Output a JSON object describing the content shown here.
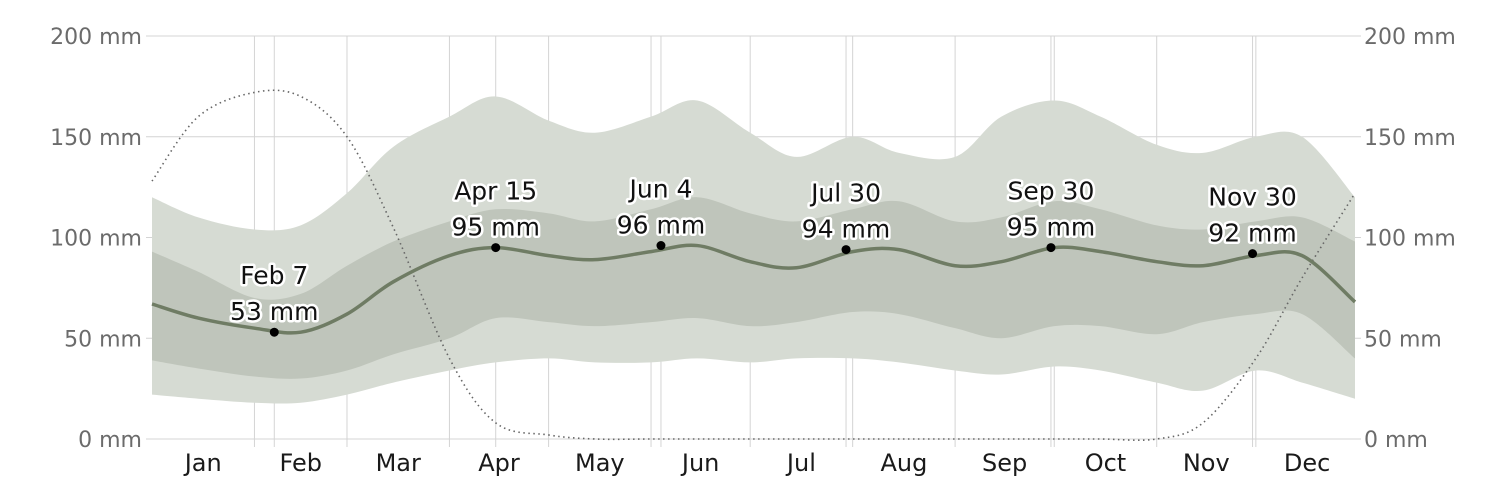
{
  "chart_data": {
    "type": "area",
    "title": "",
    "xlabel": "",
    "ylabel": "",
    "unit": "mm",
    "ylim": [
      0,
      200
    ],
    "y_ticks": [
      {
        "value": 0,
        "label": "0 mm"
      },
      {
        "value": 50,
        "label": "50 mm"
      },
      {
        "value": 100,
        "label": "100 mm"
      },
      {
        "value": 150,
        "label": "150 mm"
      },
      {
        "value": 200,
        "label": "200 mm"
      }
    ],
    "months": [
      "Jan",
      "Feb",
      "Mar",
      "Apr",
      "May",
      "Jun",
      "Jul",
      "Aug",
      "Sep",
      "Oct",
      "Nov",
      "Dec"
    ],
    "grid": true,
    "colors": {
      "band_outer": "#d6dbd3",
      "band_inner": "#bfc5bb",
      "median_line": "#6f7c64",
      "dotted_line": "#666666",
      "gridline": "#d4d4d4",
      "marker": "#000000"
    },
    "day_of_year": [
      1,
      15,
      32,
      46,
      60,
      74,
      91,
      105,
      121,
      135,
      152,
      166,
      182,
      196,
      213,
      227,
      244,
      258,
      274,
      288,
      305,
      319,
      335,
      349,
      365
    ],
    "series": [
      {
        "values": [
          67,
          60,
          55,
          53,
          62,
          78,
          91,
          95,
          91,
          89,
          93,
          96,
          88,
          85,
          93,
          94,
          86,
          88,
          95,
          93,
          88,
          86,
          91,
          91,
          68
        ]
      },
      {
        "values": [
          93,
          83,
          70,
          72,
          86,
          98,
          108,
          114,
          112,
          108,
          114,
          120,
          112,
          108,
          114,
          118,
          108,
          110,
          118,
          114,
          106,
          104,
          108,
          110,
          98
        ]
      },
      {
        "values": [
          39,
          35,
          31,
          30,
          34,
          42,
          50,
          60,
          58,
          56,
          58,
          60,
          56,
          58,
          63,
          62,
          55,
          50,
          56,
          56,
          52,
          58,
          62,
          62,
          40
        ]
      },
      {
        "values": [
          120,
          110,
          104,
          106,
          122,
          145,
          160,
          170,
          158,
          152,
          160,
          168,
          152,
          140,
          150,
          142,
          140,
          160,
          168,
          160,
          146,
          142,
          150,
          150,
          120
        ]
      },
      {
        "values": [
          22,
          20,
          18,
          18,
          22,
          28,
          34,
          38,
          40,
          38,
          38,
          40,
          38,
          40,
          40,
          38,
          34,
          32,
          36,
          34,
          28,
          24,
          34,
          28,
          20
        ]
      },
      {
        "values": [
          128,
          160,
          172,
          170,
          150,
          105,
          40,
          8,
          2,
          0,
          0,
          0,
          0,
          0,
          0,
          0,
          0,
          0,
          0,
          0,
          0,
          8,
          40,
          80,
          122
        ]
      }
    ],
    "annotations": [
      {
        "day": 38,
        "value": 53,
        "date": "Feb 7",
        "amount": "53 mm"
      },
      {
        "day": 105,
        "value": 95,
        "date": "Apr 15",
        "amount": "95 mm"
      },
      {
        "day": 155,
        "value": 96,
        "date": "Jun 4",
        "amount": "96 mm"
      },
      {
        "day": 211,
        "value": 94,
        "date": "Jul 30",
        "amount": "94 mm"
      },
      {
        "day": 273,
        "value": 95,
        "date": "Sep 30",
        "amount": "95 mm"
      },
      {
        "day": 334,
        "value": 92,
        "date": "Nov 30",
        "amount": "92 mm"
      }
    ]
  }
}
